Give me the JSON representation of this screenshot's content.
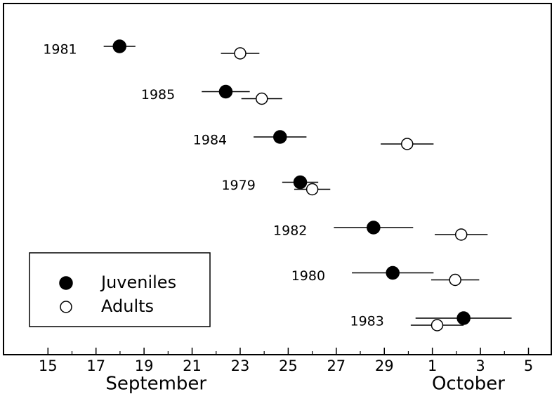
{
  "chart_data": {
    "type": "scatter",
    "categories": [
      "1981",
      "1985",
      "1984",
      "1979",
      "1982",
      "1980",
      "1983"
    ],
    "series": [
      {
        "name": "Juveniles",
        "color": "#000000",
        "filled": true,
        "values": [
          17.98,
          22.4,
          24.66,
          25.5,
          28.55,
          29.35,
          32.3
        ],
        "errors": [
          0.66,
          1.0,
          1.1,
          0.75,
          1.65,
          1.7,
          2.0
        ]
      },
      {
        "name": "Adults",
        "color": "#000000",
        "filled": false,
        "values": [
          23.0,
          23.9,
          29.95,
          26.0,
          32.2,
          31.95,
          31.2
        ],
        "errors": [
          0.8,
          0.85,
          1.1,
          0.75,
          1.1,
          1.0,
          1.1
        ]
      }
    ],
    "xlim": [
      13.15,
      35.95
    ],
    "xticks": [
      15,
      17,
      19,
      21,
      23,
      25,
      27,
      29,
      {
        "value": 31,
        "label": "1"
      },
      {
        "value": 33,
        "label": "3"
      },
      {
        "value": 35,
        "label": "5"
      }
    ],
    "x_month_labels": [
      {
        "value": 19.5,
        "label": "September"
      },
      {
        "value": 32.5,
        "label": "October"
      }
    ],
    "legend": "lower left"
  }
}
